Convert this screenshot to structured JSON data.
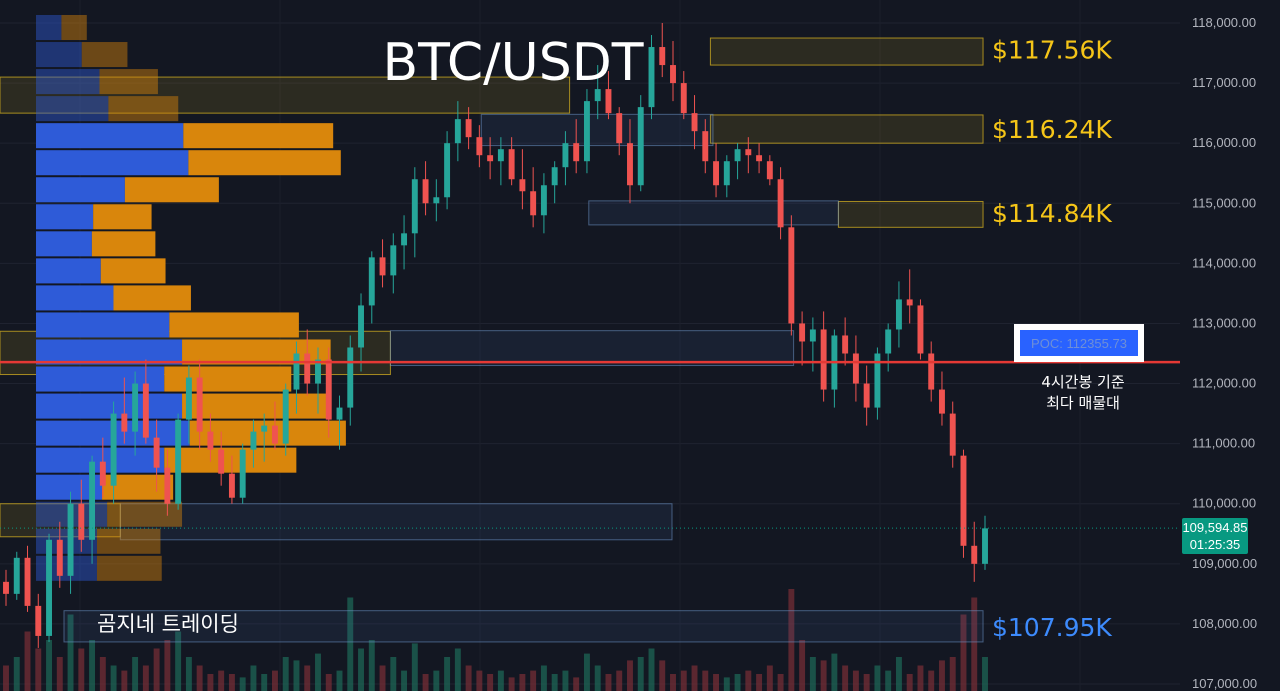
{
  "chart_data": {
    "type": "candlestick",
    "title": "BTC/USDT",
    "brand": "곰지네 트레이딩",
    "ylim": [
      107000,
      118200
    ],
    "y_ticks": [
      "118,000.00",
      "117,000.00",
      "116,000.00",
      "115,000.00",
      "114,000.00",
      "113,000.00",
      "112,000.00",
      "111,000.00",
      "110,000.00",
      "109,000.00",
      "108,000.00",
      "107,000.00"
    ],
    "y_tick_values": [
      118000,
      117000,
      116000,
      115000,
      114000,
      113000,
      112000,
      111000,
      110000,
      109000,
      108000,
      107000
    ],
    "current_price": {
      "value": 109594.85,
      "label": "109,594.85",
      "countdown": "01:25:35",
      "color": "#089981"
    },
    "poc": {
      "value": 112355.73,
      "label": "POC: 112355.73",
      "note_line1": "4시간봉 기준",
      "note_line2": "최다 매물대",
      "color": "#e53935"
    },
    "levels": [
      {
        "label": "$117.56K",
        "value": 117560,
        "color": "#f5c518"
      },
      {
        "label": "$116.24K",
        "value": 116240,
        "color": "#f5c518"
      },
      {
        "label": "$114.84K",
        "value": 114840,
        "color": "#f5c518"
      },
      {
        "label": "$107.95K",
        "value": 107950,
        "color": "#3d8bfd"
      }
    ],
    "zones": [
      {
        "kind": "yellow",
        "x0": 0.555,
        "x1": 0.768,
        "lo": 117300,
        "hi": 117750
      },
      {
        "kind": "yellow",
        "x0": 0.555,
        "x1": 0.768,
        "lo": 116000,
        "hi": 116470
      },
      {
        "kind": "yellow",
        "x0": 0.655,
        "x1": 0.768,
        "lo": 114600,
        "hi": 115030
      },
      {
        "kind": "yellow",
        "x0": 0.0,
        "x1": 0.445,
        "lo": 116500,
        "hi": 117100
      },
      {
        "kind": "yellow",
        "x0": 0.0,
        "x1": 0.305,
        "lo": 112150,
        "hi": 112870
      },
      {
        "kind": "yellow",
        "x0": 0.0,
        "x1": 0.094,
        "lo": 109450,
        "hi": 110000
      },
      {
        "kind": "blue",
        "x0": 0.376,
        "x1": 0.557,
        "lo": 115960,
        "hi": 116480
      },
      {
        "kind": "blue",
        "x0": 0.46,
        "x1": 0.655,
        "lo": 114640,
        "hi": 115040
      },
      {
        "kind": "blue",
        "x0": 0.305,
        "x1": 0.62,
        "lo": 112300,
        "hi": 112880
      },
      {
        "kind": "blue",
        "x0": 0.094,
        "x1": 0.525,
        "lo": 109400,
        "hi": 110000
      },
      {
        "kind": "blue",
        "x0": 0.05,
        "x1": 0.768,
        "lo": 107700,
        "hi": 108220
      }
    ],
    "volume_profile": [
      {
        "lo": 117700,
        "hi": 118150,
        "buy": 20,
        "sell": 20
      },
      {
        "lo": 117250,
        "hi": 117700,
        "buy": 36,
        "sell": 36
      },
      {
        "lo": 116800,
        "hi": 117250,
        "buy": 50,
        "sell": 46
      },
      {
        "lo": 116350,
        "hi": 116800,
        "buy": 57,
        "sell": 55
      },
      {
        "lo": 115900,
        "hi": 116350,
        "buy": 116,
        "sell": 118
      },
      {
        "lo": 115450,
        "hi": 115900,
        "buy": 120,
        "sell": 120
      },
      {
        "lo": 115000,
        "hi": 115450,
        "buy": 70,
        "sell": 74
      },
      {
        "lo": 114550,
        "hi": 115000,
        "buy": 45,
        "sell": 46
      },
      {
        "lo": 114100,
        "hi": 114550,
        "buy": 44,
        "sell": 50
      },
      {
        "lo": 113650,
        "hi": 114100,
        "buy": 51,
        "sell": 51
      },
      {
        "lo": 113200,
        "hi": 113650,
        "buy": 61,
        "sell": 61
      },
      {
        "lo": 112750,
        "hi": 113200,
        "buy": 105,
        "sell": 102
      },
      {
        "lo": 112300,
        "hi": 112750,
        "buy": 115,
        "sell": 117
      },
      {
        "lo": 111850,
        "hi": 112300,
        "buy": 101,
        "sell": 100
      },
      {
        "lo": 111400,
        "hi": 111850,
        "buy": 115,
        "sell": 115
      },
      {
        "lo": 110950,
        "hi": 111400,
        "buy": 121,
        "sell": 123
      },
      {
        "lo": 110500,
        "hi": 110950,
        "buy": 101,
        "sell": 104
      },
      {
        "lo": 110050,
        "hi": 110500,
        "buy": 52,
        "sell": 56
      },
      {
        "lo": 109600,
        "hi": 110050,
        "buy": 56,
        "sell": 59
      },
      {
        "lo": 109150,
        "hi": 109600,
        "buy": 48,
        "sell": 50
      },
      {
        "lo": 108700,
        "hi": 109150,
        "buy": 48,
        "sell": 51
      }
    ],
    "candles": [
      [
        108700,
        108900,
        108300,
        108500
      ],
      [
        108500,
        109200,
        108400,
        109100
      ],
      [
        109100,
        109300,
        108200,
        108300
      ],
      [
        108300,
        108500,
        107600,
        107800
      ],
      [
        107800,
        109500,
        107700,
        109400
      ],
      [
        109400,
        109700,
        108600,
        108800
      ],
      [
        108800,
        110200,
        108500,
        110000
      ],
      [
        110000,
        110400,
        109200,
        109400
      ],
      [
        109400,
        110800,
        109000,
        110700
      ],
      [
        110700,
        111100,
        110100,
        110300
      ],
      [
        110300,
        111700,
        110000,
        111500
      ],
      [
        111500,
        112100,
        111000,
        111200
      ],
      [
        111200,
        112200,
        110800,
        112000
      ],
      [
        112000,
        112400,
        111000,
        111100
      ],
      [
        111100,
        111400,
        110200,
        110600
      ],
      [
        110600,
        110900,
        109800,
        110000
      ],
      [
        110000,
        111500,
        109900,
        111400
      ],
      [
        111400,
        112300,
        111000,
        112100
      ],
      [
        112100,
        112400,
        110900,
        111200
      ],
      [
        111200,
        111500,
        110700,
        110900
      ],
      [
        110900,
        111200,
        110300,
        110500
      ],
      [
        110500,
        110800,
        110000,
        110100
      ],
      [
        110100,
        111000,
        110000,
        110900
      ],
      [
        110900,
        111400,
        110600,
        111200
      ],
      [
        111200,
        111500,
        110700,
        111300
      ],
      [
        111300,
        111700,
        110900,
        111000
      ],
      [
        111000,
        112000,
        110800,
        111900
      ],
      [
        111900,
        112700,
        111500,
        112500
      ],
      [
        112500,
        112900,
        111800,
        112000
      ],
      [
        112000,
        112600,
        111500,
        112400
      ],
      [
        112400,
        112600,
        111100,
        111400
      ],
      [
        111400,
        111800,
        110900,
        111600
      ],
      [
        111600,
        112800,
        111300,
        112600
      ],
      [
        112600,
        113500,
        112200,
        113300
      ],
      [
        113300,
        114200,
        113000,
        114100
      ],
      [
        114100,
        114400,
        113600,
        113800
      ],
      [
        113800,
        114500,
        113500,
        114300
      ],
      [
        114300,
        114800,
        113900,
        114500
      ],
      [
        114500,
        115600,
        114100,
        115400
      ],
      [
        115400,
        115700,
        114800,
        115000
      ],
      [
        115000,
        115400,
        114700,
        115100
      ],
      [
        115100,
        116200,
        114900,
        116000
      ],
      [
        116000,
        116700,
        115700,
        116400
      ],
      [
        116400,
        116600,
        115900,
        116100
      ],
      [
        116100,
        116300,
        115600,
        115800
      ],
      [
        115800,
        116100,
        115400,
        115700
      ],
      [
        115700,
        116100,
        115300,
        115900
      ],
      [
        115900,
        116100,
        115300,
        115400
      ],
      [
        115400,
        115900,
        114900,
        115200
      ],
      [
        115200,
        115600,
        114600,
        114800
      ],
      [
        114800,
        115500,
        114500,
        115300
      ],
      [
        115300,
        115700,
        115000,
        115600
      ],
      [
        115600,
        116200,
        115300,
        116000
      ],
      [
        116000,
        116400,
        115500,
        115700
      ],
      [
        115700,
        116900,
        115500,
        116700
      ],
      [
        116700,
        117300,
        116400,
        116900
      ],
      [
        116900,
        117200,
        116400,
        116500
      ],
      [
        116500,
        116600,
        115800,
        116000
      ],
      [
        116000,
        116400,
        115000,
        115300
      ],
      [
        115300,
        116800,
        115200,
        116600
      ],
      [
        116600,
        117800,
        116400,
        117600
      ],
      [
        117600,
        118000,
        117100,
        117300
      ],
      [
        117300,
        117700,
        116700,
        117000
      ],
      [
        117000,
        117200,
        116400,
        116500
      ],
      [
        116500,
        116800,
        115900,
        116200
      ],
      [
        116200,
        116400,
        115500,
        115700
      ],
      [
        115700,
        116000,
        115100,
        115300
      ],
      [
        115300,
        115800,
        115100,
        115700
      ],
      [
        115700,
        116000,
        115400,
        115900
      ],
      [
        115900,
        116100,
        115500,
        115800
      ],
      [
        115800,
        116000,
        115500,
        115700
      ],
      [
        115700,
        115800,
        115300,
        115400
      ],
      [
        115400,
        115600,
        114400,
        114600
      ],
      [
        114600,
        114800,
        112800,
        113000
      ],
      [
        113000,
        113200,
        112300,
        112700
      ],
      [
        112700,
        113100,
        112200,
        112900
      ],
      [
        112900,
        113200,
        111700,
        111900
      ],
      [
        111900,
        112900,
        111600,
        112800
      ],
      [
        112800,
        113100,
        112300,
        112500
      ],
      [
        112500,
        112800,
        111700,
        112000
      ],
      [
        112000,
        112300,
        111300,
        111600
      ],
      [
        111600,
        112600,
        111400,
        112500
      ],
      [
        112500,
        113000,
        112200,
        112900
      ],
      [
        112900,
        113700,
        112600,
        113400
      ],
      [
        113400,
        113900,
        113000,
        113300
      ],
      [
        113300,
        113400,
        112400,
        112500
      ],
      [
        112500,
        112700,
        111700,
        111900
      ],
      [
        111900,
        112200,
        111300,
        111500
      ],
      [
        111500,
        111700,
        110600,
        110800
      ],
      [
        110800,
        110900,
        109100,
        109300
      ],
      [
        109300,
        109700,
        108700,
        109000
      ],
      [
        109000,
        109800,
        108900,
        109590
      ]
    ],
    "volumes": [
      0.15,
      0.2,
      0.35,
      0.25,
      0.3,
      0.2,
      0.45,
      0.25,
      0.3,
      0.2,
      0.15,
      0.12,
      0.2,
      0.15,
      0.25,
      0.3,
      0.35,
      0.2,
      0.15,
      0.1,
      0.12,
      0.1,
      0.08,
      0.15,
      0.1,
      0.12,
      0.2,
      0.18,
      0.15,
      0.22,
      0.1,
      0.12,
      0.55,
      0.25,
      0.3,
      0.15,
      0.2,
      0.12,
      0.28,
      0.1,
      0.12,
      0.2,
      0.25,
      0.15,
      0.12,
      0.1,
      0.12,
      0.08,
      0.1,
      0.12,
      0.15,
      0.1,
      0.12,
      0.08,
      0.22,
      0.15,
      0.1,
      0.12,
      0.18,
      0.2,
      0.25,
      0.18,
      0.1,
      0.12,
      0.15,
      0.12,
      0.1,
      0.08,
      0.1,
      0.12,
      0.1,
      0.15,
      0.1,
      0.6,
      0.3,
      0.2,
      0.18,
      0.22,
      0.15,
      0.12,
      0.1,
      0.15,
      0.12,
      0.2,
      0.1,
      0.15,
      0.12,
      0.18,
      0.2,
      0.45,
      0.55,
      0.2
    ]
  }
}
